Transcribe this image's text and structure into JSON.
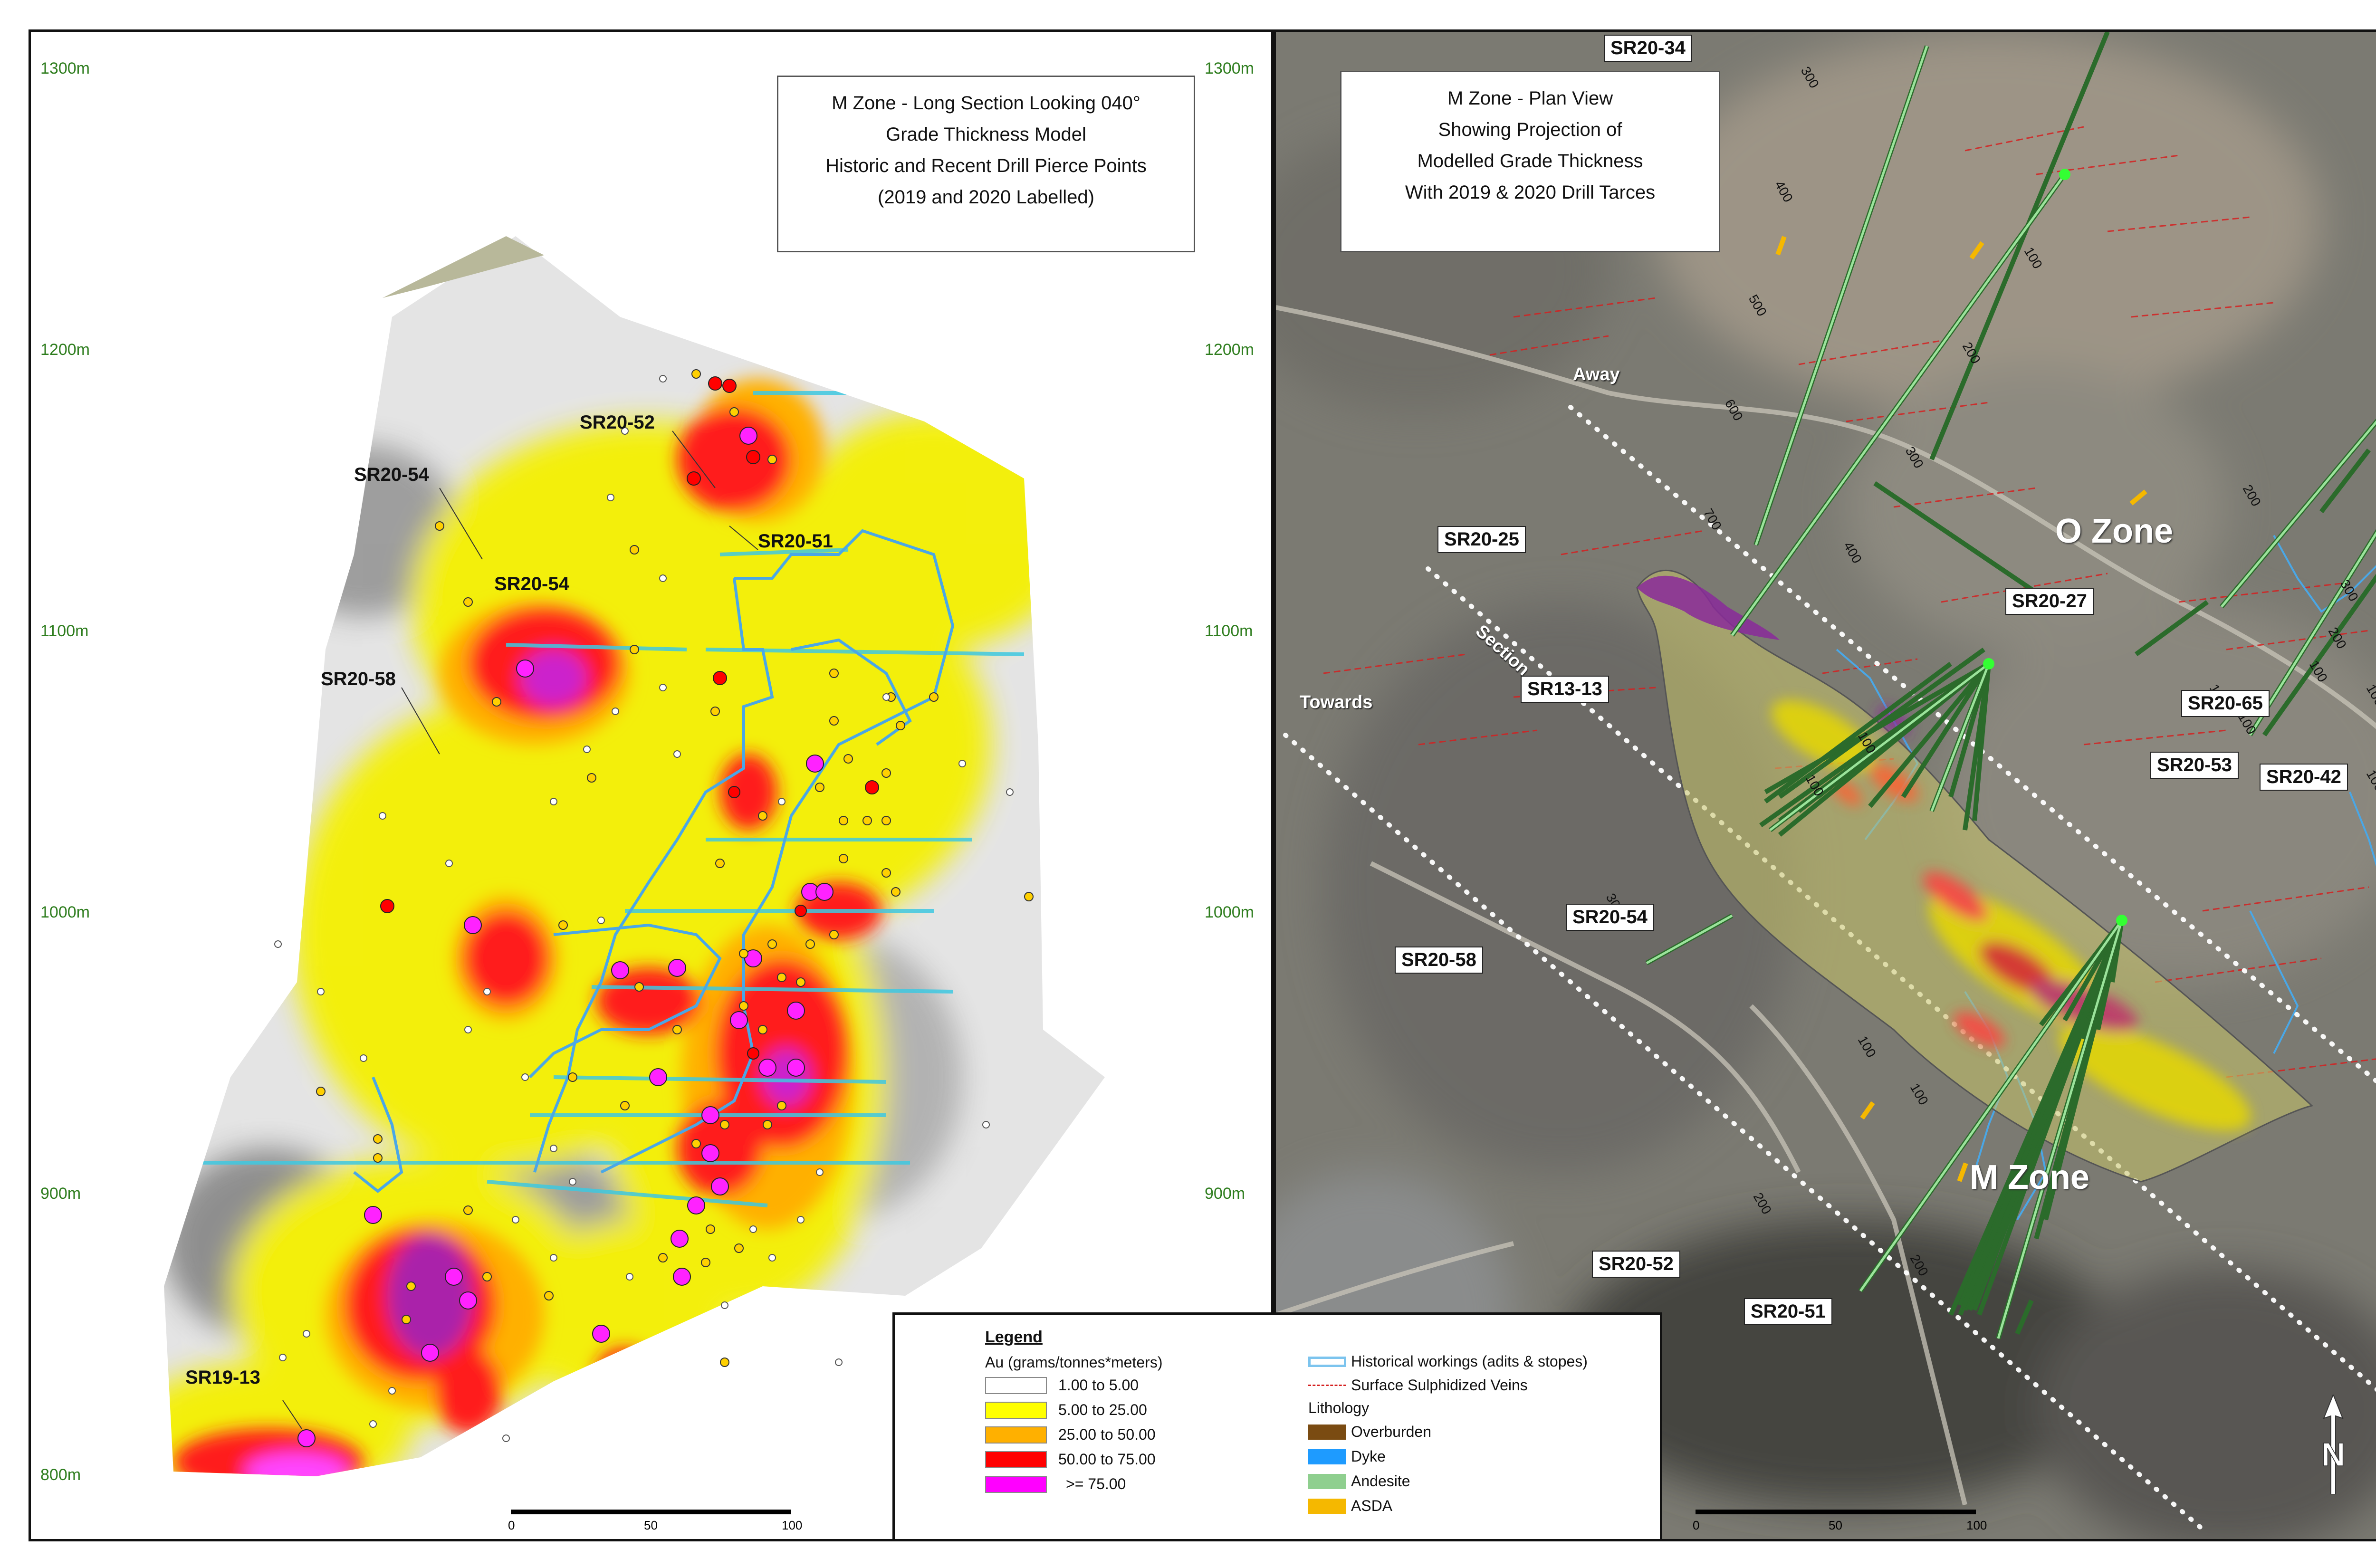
{
  "left_panel": {
    "title_lines": [
      "M Zone - Long Section Looking 040°",
      "Grade Thickness Model",
      "Historic and Recent Drill Pierce Points",
      "(2019 and 2020 Labelled)"
    ],
    "elevations": [
      "1300m",
      "1200m",
      "1100m",
      "1000m",
      "900m",
      "800m"
    ],
    "hole_labels": [
      "SR20-52",
      "SR20-54",
      "SR20-51",
      "SR20-54",
      "SR20-58",
      "SR19-13"
    ],
    "scale": {
      "ticks": [
        "0",
        "50",
        "100"
      ]
    }
  },
  "right_panel": {
    "title_lines": [
      "M Zone - Plan View",
      "Showing Projection of",
      "Modelled Grade Thickness",
      "With 2019 & 2020 Drill Tarces"
    ],
    "elevations": [
      "1300m",
      "1200m",
      "1100m",
      "1000m",
      "900m"
    ],
    "hole_labels": [
      "SR20-34",
      "SR20-25",
      "SR13-13",
      "SR20-54",
      "SR20-58",
      "SR20-27",
      "SR20-65",
      "SR20-53",
      "SR20-42",
      "SR20-52",
      "SR20-51"
    ],
    "zone_labels": [
      "O Zone",
      "M Zone"
    ],
    "section_words": [
      "Away",
      "Section",
      "Towards"
    ],
    "depth_ticks": [
      "300",
      "400",
      "500",
      "600",
      "700",
      "100",
      "200",
      "300",
      "400",
      "200",
      "300",
      "200",
      "100",
      "100",
      "100",
      "300",
      "100",
      "200",
      "100",
      "200",
      "100",
      "100",
      "100",
      "100"
    ],
    "scale": {
      "ticks": [
        "0",
        "50",
        "100"
      ]
    },
    "north_label": "N"
  },
  "legend": {
    "title": "Legend",
    "grade_heading": "Au (grams/tonnes*meters)",
    "grade_classes": [
      {
        "label": "1.00 to 5.00",
        "color": "#ffffff"
      },
      {
        "label": "5.00 to 25.00",
        "color": "#ffff00"
      },
      {
        "label": "25.00 to 50.00",
        "color": "#ffb000"
      },
      {
        "label": "50.00 to 75.00",
        "color": "#ff0000"
      },
      {
        "label": ">= 75.00",
        "color": "#ff00ff"
      }
    ],
    "workings_label": "Historical workings (adits & stopes)",
    "veins_label": "Surface Sulphidized Veins",
    "lithology_heading": "Lithology",
    "lithology": [
      {
        "label": "Overburden",
        "color": "#7a4b12"
      },
      {
        "label": "Dyke",
        "color": "#1e9bff"
      },
      {
        "label": "Andesite",
        "color": "#8fcf8f"
      },
      {
        "label": "ASDA",
        "color": "#f5b800"
      }
    ]
  }
}
